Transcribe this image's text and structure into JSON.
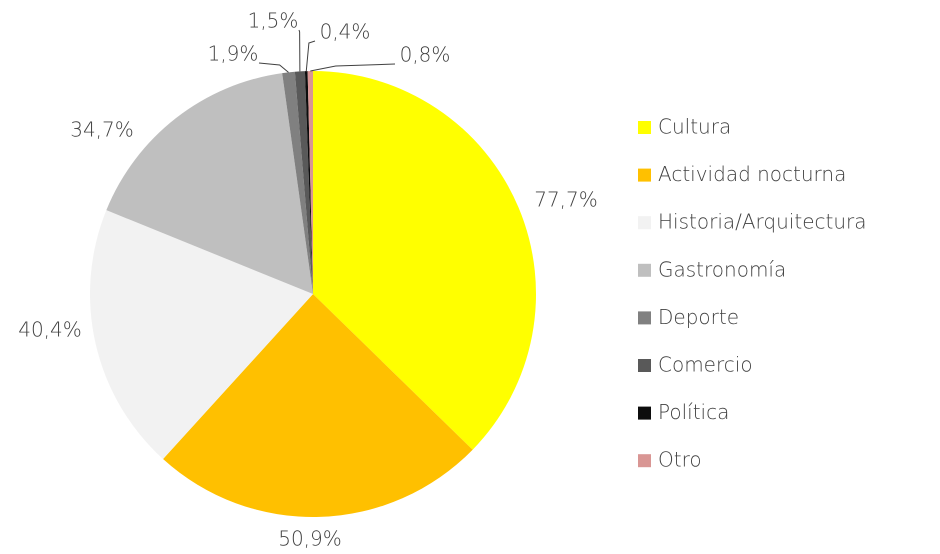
{
  "chart_data": {
    "type": "pie",
    "categories": [
      "Cultura",
      "Actividad nocturna",
      "Historia/Arquitectura",
      "Gastronomía",
      "Deporte",
      "Comercio",
      "Política",
      "Otro"
    ],
    "values": [
      77.7,
      50.9,
      40.4,
      34.7,
      1.9,
      1.5,
      0.4,
      0.8
    ],
    "value_labels": [
      "77,7%",
      "50,9%",
      "40,4%",
      "34,7%",
      "1,9%",
      "1,5%",
      "0,4%",
      "0,8%"
    ],
    "colors": [
      "#ffff00",
      "#ffc000",
      "#f2f2f2",
      "#bfbfbf",
      "#808080",
      "#595959",
      "#0d0d0d",
      "#d99694"
    ],
    "legend": "right"
  }
}
